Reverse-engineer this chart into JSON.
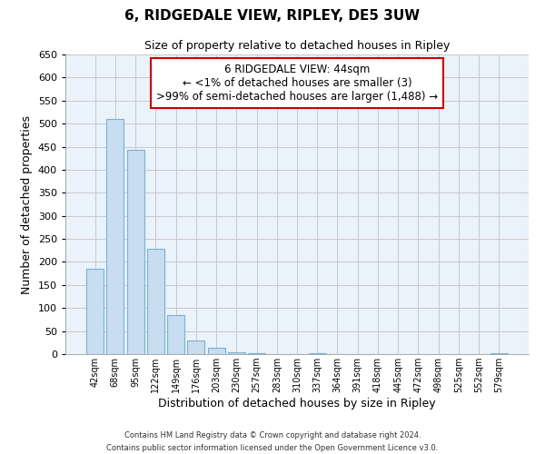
{
  "title": "6, RIDGEDALE VIEW, RIPLEY, DE5 3UW",
  "subtitle": "Size of property relative to detached houses in Ripley",
  "xlabel": "Distribution of detached houses by size in Ripley",
  "ylabel": "Number of detached properties",
  "bar_color": "#c8ddf0",
  "bar_edge_color": "#7bafd4",
  "grid_color": "#c8c8c8",
  "background_color": "#ffffff",
  "plot_bg_color": "#eaf2fa",
  "bins": [
    "42sqm",
    "68sqm",
    "95sqm",
    "122sqm",
    "149sqm",
    "176sqm",
    "203sqm",
    "230sqm",
    "257sqm",
    "283sqm",
    "310sqm",
    "337sqm",
    "364sqm",
    "391sqm",
    "418sqm",
    "445sqm",
    "472sqm",
    "498sqm",
    "525sqm",
    "552sqm",
    "579sqm"
  ],
  "values": [
    185,
    510,
    443,
    228,
    85,
    30,
    13,
    3,
    1,
    0,
    0,
    1,
    0,
    0,
    0,
    0,
    0,
    0,
    0,
    0,
    1
  ],
  "ylim": [
    0,
    650
  ],
  "yticks": [
    0,
    50,
    100,
    150,
    200,
    250,
    300,
    350,
    400,
    450,
    500,
    550,
    600,
    650
  ],
  "annotation_box_text": "6 RIDGEDALE VIEW: 44sqm\n← <1% of detached houses are smaller (3)\n>99% of semi-detached houses are larger (1,488) →",
  "annotation_box_color": "#ffffff",
  "annotation_box_edge_color": "#cc0000",
  "footer_line1": "Contains HM Land Registry data © Crown copyright and database right 2024.",
  "footer_line2": "Contains public sector information licensed under the Open Government Licence v3.0."
}
